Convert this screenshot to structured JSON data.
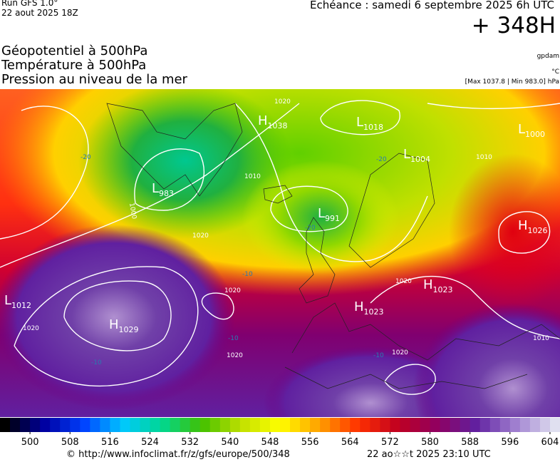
{
  "header": {
    "run": "Run GFS 1.0°",
    "run_date": "22 aout 2025 18Z",
    "echeance": "Echéance : samedi 6 septembre 2025 6h UTC",
    "lead": "+ 348H",
    "titles": [
      "Géopotentiel à 500hPa",
      "Température à 500hPa",
      "Pression au niveau de la mer"
    ],
    "units": [
      "gpdam",
      "°C",
      "[Max 1037.8 | Min 983.0] hPa"
    ]
  },
  "pressure_centers": [
    {
      "type": "L",
      "value": "983"
    },
    {
      "type": "H",
      "value": "1038"
    },
    {
      "type": "L",
      "value": "1018"
    },
    {
      "type": "L",
      "value": "1004"
    },
    {
      "type": "L",
      "value": "1000"
    },
    {
      "type": "L",
      "value": "991"
    },
    {
      "type": "H",
      "value": "1026"
    },
    {
      "type": "L",
      "value": "1012"
    },
    {
      "type": "H",
      "value": "1029"
    },
    {
      "type": "H",
      "value": "1023"
    },
    {
      "type": "H",
      "value": "1023"
    }
  ],
  "isobar_labels": [
    "1000",
    "1010",
    "1020",
    "1020",
    "1020",
    "1020",
    "1020",
    "1020",
    "1020",
    "1010",
    "1010"
  ],
  "temperature_labels": [
    "-20",
    "-20",
    "-20",
    "-10",
    "-10",
    "-10",
    "-10"
  ],
  "colorbar": {
    "range": [
      494,
      606
    ],
    "step": 2,
    "ticks": [
      500,
      508,
      516,
      524,
      532,
      540,
      548,
      556,
      564,
      572,
      580,
      588,
      596,
      604
    ],
    "stops": [
      "#000000",
      "#0000a0",
      "#0040ff",
      "#00c8ff",
      "#00d890",
      "#40c000",
      "#c0e000",
      "#ffff00",
      "#ffa000",
      "#ff3000",
      "#c00020",
      "#900060",
      "#6020a0",
      "#a080d0",
      "#e0e0f0"
    ]
  },
  "footer": {
    "url": "© http://www.infoclimat.fr/z/gfs/europe/500/348",
    "timestamp": "22 ao☆☆t 2025 23:10 UTC"
  }
}
